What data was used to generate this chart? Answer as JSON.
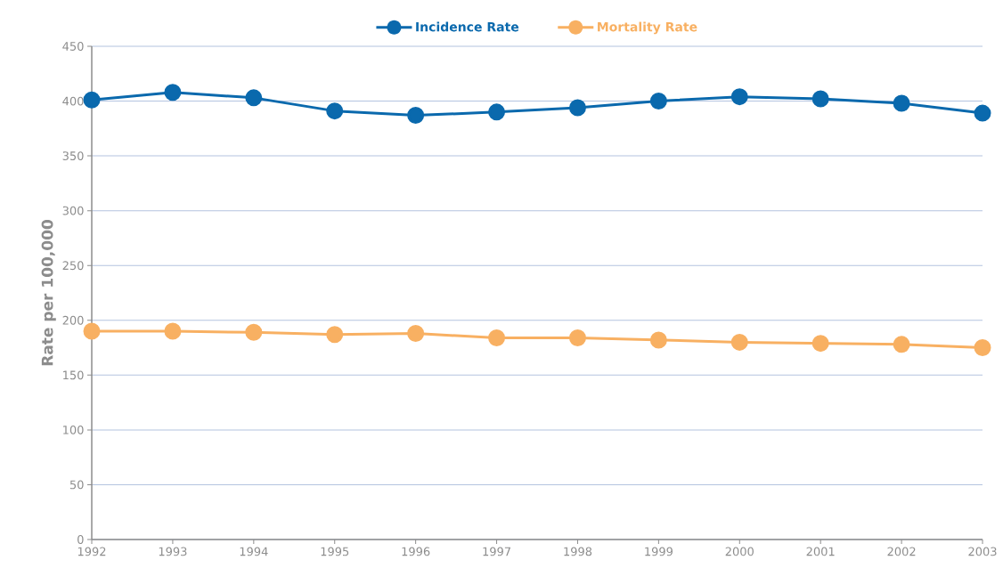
{
  "chart_data": {
    "type": "line",
    "ylabel": "Rate per 100,000",
    "x": [
      1992,
      1993,
      1994,
      1995,
      1996,
      1997,
      1998,
      1999,
      2000,
      2001,
      2002,
      2003
    ],
    "series": [
      {
        "name": "Incidence Rate",
        "color": "#0a69ad",
        "values": [
          401,
          408,
          403,
          391,
          387,
          390,
          394,
          400,
          404,
          402,
          398,
          389
        ]
      },
      {
        "name": "Mortality Rate",
        "color": "#f8b062",
        "values": [
          190,
          190,
          189,
          187,
          188,
          184,
          184,
          182,
          180,
          179,
          178,
          175
        ]
      }
    ],
    "xlim": [
      1992,
      2003
    ],
    "xticks": [
      1992,
      1993,
      1994,
      1995,
      1996,
      1997,
      1998,
      1999,
      2000,
      2001,
      2002,
      2003
    ],
    "ylim": [
      0,
      450
    ],
    "yticks": [
      0,
      50,
      100,
      150,
      200,
      250,
      300,
      350,
      400,
      450
    ],
    "grid": "y",
    "legend": "top",
    "marker": "circle",
    "line_style": "solid"
  }
}
